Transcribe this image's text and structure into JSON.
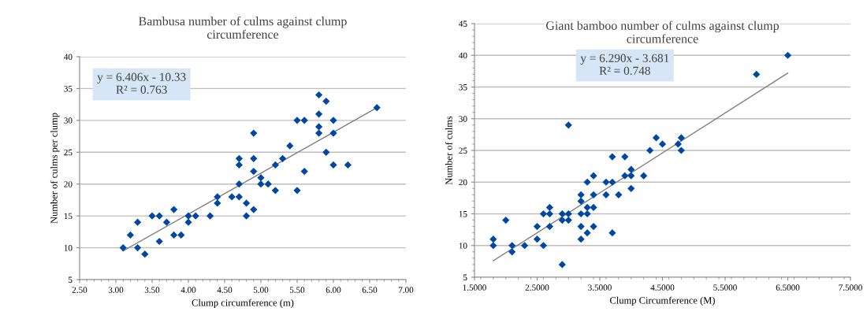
{
  "chart_data": [
    {
      "type": "scatter",
      "title": "Bambusa number of culms against clump\ncircumference",
      "xlabel": "Clump circumference (m)",
      "ylabel": "Number of culms per clump",
      "annotations": [
        "y = 6.406x - 10.33\nR² = 0.763"
      ],
      "series": [
        {
          "color": "#0047a3",
          "marker": "diamond",
          "x": [
            3.1,
            3.2,
            3.3,
            3.3,
            3.4,
            3.5,
            3.6,
            3.6,
            3.7,
            3.8,
            3.8,
            3.9,
            4.0,
            4.0,
            4.1,
            4.3,
            4.4,
            4.4,
            4.6,
            4.7,
            4.7,
            4.7,
            4.7,
            4.8,
            4.8,
            4.9,
            4.9,
            4.9,
            4.9,
            5.0,
            5.0,
            5.1,
            5.2,
            5.2,
            5.3,
            5.4,
            5.5,
            5.5,
            5.6,
            5.6,
            5.8,
            5.8,
            5.8,
            5.8,
            5.9,
            5.9,
            6.0,
            6.0,
            6.0,
            6.2,
            6.6
          ],
          "values": [
            10,
            12,
            14,
            10,
            9,
            15,
            15,
            11,
            14,
            16,
            12,
            12,
            15,
            14,
            15,
            15,
            18,
            17,
            18,
            18,
            20,
            23,
            24,
            17,
            15,
            16,
            22,
            24,
            28,
            21,
            20,
            20,
            19,
            23,
            24,
            26,
            30,
            19,
            30,
            22,
            34,
            31,
            29,
            28,
            33,
            25,
            30,
            28,
            23,
            23,
            32
          ]
        },
        {
          "type": "line",
          "color": "#7f7f7f",
          "line_style": "solid",
          "marker": "none",
          "x": [
            3.1,
            6.6
          ],
          "values": [
            9.5,
            32.0
          ]
        }
      ],
      "xlim": [
        2.5,
        7.0
      ],
      "xticks": [
        {
          "value": 2.5,
          "label": "2.50"
        },
        {
          "value": 3.0,
          "label": "3.00"
        },
        {
          "value": 3.5,
          "label": "3.50"
        },
        {
          "value": 4.0,
          "label": "4.00"
        },
        {
          "value": 4.5,
          "label": "4.50"
        },
        {
          "value": 5.0,
          "label": "5.00"
        },
        {
          "value": 5.5,
          "label": "5.50"
        },
        {
          "value": 6.0,
          "label": "6.00"
        },
        {
          "value": 6.5,
          "label": "6.50"
        },
        {
          "value": 7.0,
          "label": "7.00"
        }
      ],
      "ylim": [
        5,
        40
      ],
      "yticks": [
        5,
        10,
        15,
        20,
        25,
        30,
        35,
        40
      ],
      "grid": "y",
      "legend": false
    },
    {
      "type": "scatter",
      "title": "Giant bamboo number of culms against clump\ncircumference",
      "xlabel": "Clump Circumference (M)",
      "ylabel": "Number of culms",
      "annotations": [
        "y = 6.290x - 3.681\nR² = 0.748"
      ],
      "series": [
        {
          "color": "#0047a3",
          "marker": "diamond",
          "x": [
            1.8,
            1.8,
            2.0,
            2.1,
            2.1,
            2.3,
            2.5,
            2.5,
            2.6,
            2.6,
            2.7,
            2.7,
            2.7,
            2.9,
            2.9,
            2.9,
            3.0,
            3.0,
            3.0,
            3.2,
            3.2,
            3.2,
            3.2,
            3.2,
            3.3,
            3.3,
            3.3,
            3.3,
            3.4,
            3.4,
            3.4,
            3.4,
            3.6,
            3.6,
            3.7,
            3.7,
            3.7,
            3.8,
            3.9,
            3.9,
            4.0,
            4.0,
            4.0,
            4.2,
            4.3,
            4.4,
            4.5,
            4.75,
            4.8,
            4.8,
            6.0,
            6.5
          ],
          "values": [
            11,
            10,
            14,
            10,
            9,
            10,
            13,
            11,
            15,
            10,
            16,
            15,
            13,
            15,
            14,
            7,
            15,
            14,
            29,
            18,
            17,
            15,
            13,
            11,
            20,
            16,
            15,
            12,
            21,
            18,
            16,
            13,
            20,
            18,
            24,
            20,
            12,
            18,
            24,
            21,
            22,
            21,
            19,
            21,
            25,
            27,
            26,
            26,
            27,
            25,
            37,
            40
          ]
        },
        {
          "type": "line",
          "color": "#7f7f7f",
          "line_style": "solid",
          "marker": "none",
          "x": [
            1.8,
            6.5
          ],
          "values": [
            7.6,
            37.2
          ]
        }
      ],
      "xlim": [
        1.5,
        7.5
      ],
      "xticks": [
        {
          "value": 1.5,
          "label": "1.5000"
        },
        {
          "value": 2.5,
          "label": "2.5000"
        },
        {
          "value": 3.5,
          "label": "3.5000"
        },
        {
          "value": 4.5,
          "label": "4.5000"
        },
        {
          "value": 5.5,
          "label": "5.5000"
        },
        {
          "value": 6.5,
          "label": "6.5000"
        },
        {
          "value": 7.5,
          "label": "7.5000"
        }
      ],
      "ylim": [
        5,
        45
      ],
      "yticks": [
        5,
        10,
        15,
        20,
        25,
        30,
        35,
        40,
        45
      ],
      "grid": "y",
      "legend": false
    }
  ]
}
